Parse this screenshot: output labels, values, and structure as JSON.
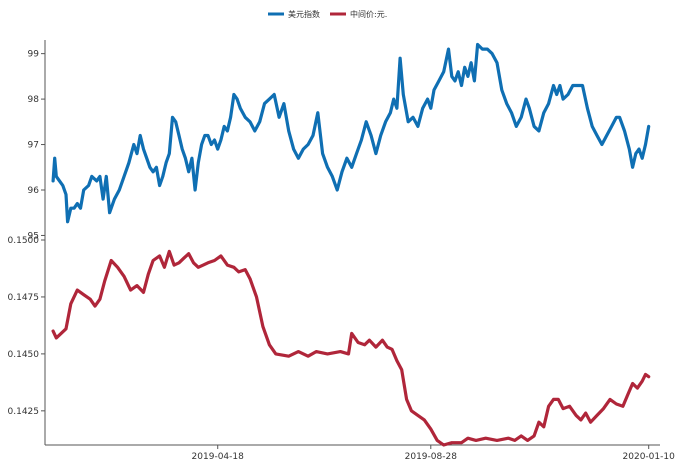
{
  "chart_data": {
    "type": "line",
    "grid": false,
    "legend": {
      "placement": "top-center",
      "entries": [
        {
          "name": "美元指数",
          "color": "#0f6fb3"
        },
        {
          "name": "中间价:元.",
          "color": "#b0263a"
        }
      ]
    },
    "x_axis": {
      "type": "date",
      "range": [
        "2019-01-01",
        "2020-01-17"
      ],
      "ticks": [
        "2019-04-18",
        "2019-08-28",
        "2020-01-10"
      ]
    },
    "panels": [
      {
        "series_name": "美元指数",
        "ylim": [
          94.9,
          99.3
        ],
        "yticks": [
          "95",
          "96",
          "97",
          "98",
          "99"
        ],
        "points": [
          [
            "2019-01-06",
            96.2
          ],
          [
            "2019-01-07",
            96.7
          ],
          [
            "2019-01-08",
            96.3
          ],
          [
            "2019-01-10",
            96.2
          ],
          [
            "2019-01-12",
            96.1
          ],
          [
            "2019-01-14",
            95.9
          ],
          [
            "2019-01-15",
            95.3
          ],
          [
            "2019-01-17",
            95.6
          ],
          [
            "2019-01-19",
            95.6
          ],
          [
            "2019-01-21",
            95.7
          ],
          [
            "2019-01-23",
            95.6
          ],
          [
            "2019-01-25",
            96.0
          ],
          [
            "2019-01-28",
            96.1
          ],
          [
            "2019-01-30",
            96.3
          ],
          [
            "2019-02-02",
            96.2
          ],
          [
            "2019-02-04",
            96.3
          ],
          [
            "2019-02-06",
            95.8
          ],
          [
            "2019-02-08",
            96.3
          ],
          [
            "2019-02-10",
            95.5
          ],
          [
            "2019-02-13",
            95.8
          ],
          [
            "2019-02-16",
            96.0
          ],
          [
            "2019-02-19",
            96.3
          ],
          [
            "2019-02-22",
            96.6
          ],
          [
            "2019-02-25",
            97.0
          ],
          [
            "2019-02-27",
            96.8
          ],
          [
            "2019-03-01",
            97.2
          ],
          [
            "2019-03-03",
            96.9
          ],
          [
            "2019-03-05",
            96.7
          ],
          [
            "2019-03-07",
            96.5
          ],
          [
            "2019-03-09",
            96.4
          ],
          [
            "2019-03-11",
            96.5
          ],
          [
            "2019-03-13",
            96.1
          ],
          [
            "2019-03-15",
            96.3
          ],
          [
            "2019-03-17",
            96.6
          ],
          [
            "2019-03-19",
            96.8
          ],
          [
            "2019-03-21",
            97.6
          ],
          [
            "2019-03-23",
            97.5
          ],
          [
            "2019-03-25",
            97.2
          ],
          [
            "2019-03-27",
            96.9
          ],
          [
            "2019-03-29",
            96.7
          ],
          [
            "2019-03-31",
            96.4
          ],
          [
            "2019-04-02",
            96.7
          ],
          [
            "2019-04-04",
            96.0
          ],
          [
            "2019-04-06",
            96.6
          ],
          [
            "2019-04-08",
            97.0
          ],
          [
            "2019-04-10",
            97.2
          ],
          [
            "2019-04-12",
            97.2
          ],
          [
            "2019-04-14",
            97.0
          ],
          [
            "2019-04-16",
            97.1
          ],
          [
            "2019-04-18",
            96.9
          ],
          [
            "2019-04-20",
            97.1
          ],
          [
            "2019-04-22",
            97.4
          ],
          [
            "2019-04-24",
            97.3
          ],
          [
            "2019-04-26",
            97.6
          ],
          [
            "2019-04-28",
            98.1
          ],
          [
            "2019-04-30",
            98.0
          ],
          [
            "2019-05-02",
            97.8
          ],
          [
            "2019-05-05",
            97.6
          ],
          [
            "2019-05-08",
            97.5
          ],
          [
            "2019-05-11",
            97.3
          ],
          [
            "2019-05-14",
            97.5
          ],
          [
            "2019-05-17",
            97.9
          ],
          [
            "2019-05-20",
            98.0
          ],
          [
            "2019-05-23",
            98.1
          ],
          [
            "2019-05-26",
            97.6
          ],
          [
            "2019-05-29",
            97.9
          ],
          [
            "2019-06-01",
            97.3
          ],
          [
            "2019-06-04",
            96.9
          ],
          [
            "2019-06-07",
            96.7
          ],
          [
            "2019-06-10",
            96.9
          ],
          [
            "2019-06-13",
            97.0
          ],
          [
            "2019-06-16",
            97.2
          ],
          [
            "2019-06-19",
            97.7
          ],
          [
            "2019-06-22",
            96.8
          ],
          [
            "2019-06-25",
            96.5
          ],
          [
            "2019-06-28",
            96.3
          ],
          [
            "2019-07-01",
            96.0
          ],
          [
            "2019-07-04",
            96.4
          ],
          [
            "2019-07-07",
            96.7
          ],
          [
            "2019-07-10",
            96.5
          ],
          [
            "2019-07-13",
            96.8
          ],
          [
            "2019-07-16",
            97.1
          ],
          [
            "2019-07-19",
            97.5
          ],
          [
            "2019-07-22",
            97.2
          ],
          [
            "2019-07-25",
            96.8
          ],
          [
            "2019-07-28",
            97.2
          ],
          [
            "2019-07-31",
            97.5
          ],
          [
            "2019-08-03",
            97.7
          ],
          [
            "2019-08-05",
            98.0
          ],
          [
            "2019-08-07",
            97.8
          ],
          [
            "2019-08-09",
            98.9
          ],
          [
            "2019-08-11",
            98.1
          ],
          [
            "2019-08-14",
            97.5
          ],
          [
            "2019-08-17",
            97.6
          ],
          [
            "2019-08-20",
            97.4
          ],
          [
            "2019-08-23",
            97.8
          ],
          [
            "2019-08-26",
            98.0
          ],
          [
            "2019-08-28",
            97.8
          ],
          [
            "2019-08-30",
            98.2
          ],
          [
            "2019-09-02",
            98.4
          ],
          [
            "2019-09-05",
            98.6
          ],
          [
            "2019-09-08",
            99.1
          ],
          [
            "2019-09-10",
            98.5
          ],
          [
            "2019-09-12",
            98.4
          ],
          [
            "2019-09-14",
            98.6
          ],
          [
            "2019-09-16",
            98.3
          ],
          [
            "2019-09-18",
            98.7
          ],
          [
            "2019-09-20",
            98.5
          ],
          [
            "2019-09-22",
            98.8
          ],
          [
            "2019-09-24",
            98.4
          ],
          [
            "2019-09-26",
            99.2
          ],
          [
            "2019-09-29",
            99.1
          ],
          [
            "2019-10-02",
            99.1
          ],
          [
            "2019-10-05",
            99.0
          ],
          [
            "2019-10-08",
            98.8
          ],
          [
            "2019-10-11",
            98.2
          ],
          [
            "2019-10-14",
            97.9
          ],
          [
            "2019-10-17",
            97.7
          ],
          [
            "2019-10-20",
            97.4
          ],
          [
            "2019-10-23",
            97.6
          ],
          [
            "2019-10-26",
            98.0
          ],
          [
            "2019-10-28",
            97.8
          ],
          [
            "2019-10-31",
            97.4
          ],
          [
            "2019-11-03",
            97.3
          ],
          [
            "2019-11-06",
            97.7
          ],
          [
            "2019-11-09",
            97.9
          ],
          [
            "2019-11-12",
            98.3
          ],
          [
            "2019-11-14",
            98.1
          ],
          [
            "2019-11-16",
            98.3
          ],
          [
            "2019-11-18",
            98.0
          ],
          [
            "2019-11-21",
            98.1
          ],
          [
            "2019-11-24",
            98.3
          ],
          [
            "2019-11-27",
            98.3
          ],
          [
            "2019-11-30",
            98.3
          ],
          [
            "2019-12-03",
            97.8
          ],
          [
            "2019-12-06",
            97.4
          ],
          [
            "2019-12-09",
            97.2
          ],
          [
            "2019-12-12",
            97.0
          ],
          [
            "2019-12-15",
            97.2
          ],
          [
            "2019-12-18",
            97.4
          ],
          [
            "2019-12-21",
            97.6
          ],
          [
            "2019-12-23",
            97.6
          ],
          [
            "2019-12-26",
            97.3
          ],
          [
            "2019-12-29",
            96.9
          ],
          [
            "2019-12-31",
            96.5
          ],
          [
            "2020-01-02",
            96.8
          ],
          [
            "2020-01-04",
            96.9
          ],
          [
            "2020-01-06",
            96.7
          ],
          [
            "2020-01-08",
            97.0
          ],
          [
            "2020-01-10",
            97.4
          ]
        ]
      },
      {
        "series_name": "中间价:元.",
        "ylim": [
          0.141,
          0.15
        ],
        "yticks": [
          "0.1425",
          "0.1450",
          "0.1475",
          "0.1500"
        ],
        "points": [
          [
            "2019-01-06",
            0.146
          ],
          [
            "2019-01-08",
            0.1457
          ],
          [
            "2019-01-11",
            0.1459
          ],
          [
            "2019-01-14",
            0.1461
          ],
          [
            "2019-01-17",
            0.1472
          ],
          [
            "2019-01-21",
            0.1478
          ],
          [
            "2019-01-25",
            0.1476
          ],
          [
            "2019-01-29",
            0.1474
          ],
          [
            "2019-02-01",
            0.1471
          ],
          [
            "2019-02-04",
            0.1474
          ],
          [
            "2019-02-07",
            0.1482
          ],
          [
            "2019-02-11",
            0.1491
          ],
          [
            "2019-02-15",
            0.1488
          ],
          [
            "2019-02-19",
            0.1484
          ],
          [
            "2019-02-23",
            0.1478
          ],
          [
            "2019-02-27",
            0.148
          ],
          [
            "2019-03-03",
            0.1477
          ],
          [
            "2019-03-06",
            0.1485
          ],
          [
            "2019-03-09",
            0.1491
          ],
          [
            "2019-03-13",
            0.1493
          ],
          [
            "2019-03-16",
            0.1488
          ],
          [
            "2019-03-19",
            0.1495
          ],
          [
            "2019-03-22",
            0.1489
          ],
          [
            "2019-03-25",
            0.149
          ],
          [
            "2019-03-28",
            0.1492
          ],
          [
            "2019-03-31",
            0.1494
          ],
          [
            "2019-04-03",
            0.149
          ],
          [
            "2019-04-06",
            0.1488
          ],
          [
            "2019-04-09",
            0.1489
          ],
          [
            "2019-04-12",
            0.149
          ],
          [
            "2019-04-16",
            0.1491
          ],
          [
            "2019-04-20",
            0.1493
          ],
          [
            "2019-04-24",
            0.1489
          ],
          [
            "2019-04-28",
            0.1488
          ],
          [
            "2019-05-01",
            0.1486
          ],
          [
            "2019-05-05",
            0.1487
          ],
          [
            "2019-05-08",
            0.1483
          ],
          [
            "2019-05-12",
            0.1475
          ],
          [
            "2019-05-16",
            0.1462
          ],
          [
            "2019-05-20",
            0.1454
          ],
          [
            "2019-05-24",
            0.145
          ],
          [
            "2019-06-01",
            0.1449
          ],
          [
            "2019-06-07",
            0.1451
          ],
          [
            "2019-06-13",
            0.1449
          ],
          [
            "2019-06-18",
            0.1451
          ],
          [
            "2019-06-25",
            0.145
          ],
          [
            "2019-07-03",
            0.1451
          ],
          [
            "2019-07-08",
            0.145
          ],
          [
            "2019-07-10",
            0.1459
          ],
          [
            "2019-07-14",
            0.1455
          ],
          [
            "2019-07-18",
            0.1454
          ],
          [
            "2019-07-21",
            0.1456
          ],
          [
            "2019-07-25",
            0.1453
          ],
          [
            "2019-07-29",
            0.1456
          ],
          [
            "2019-08-01",
            0.1453
          ],
          [
            "2019-08-04",
            0.1452
          ],
          [
            "2019-08-07",
            0.1447
          ],
          [
            "2019-08-10",
            0.1443
          ],
          [
            "2019-08-13",
            0.143
          ],
          [
            "2019-08-16",
            0.1425
          ],
          [
            "2019-08-20",
            0.1423
          ],
          [
            "2019-08-24",
            0.1421
          ],
          [
            "2019-08-28",
            0.1417
          ],
          [
            "2019-09-01",
            0.1412
          ],
          [
            "2019-09-05",
            0.141
          ],
          [
            "2019-09-10",
            0.1411
          ],
          [
            "2019-09-16",
            0.1411
          ],
          [
            "2019-09-20",
            0.1413
          ],
          [
            "2019-09-25",
            0.1412
          ],
          [
            "2019-10-01",
            0.1413
          ],
          [
            "2019-10-08",
            0.1412
          ],
          [
            "2019-10-15",
            0.1413
          ],
          [
            "2019-10-19",
            0.1412
          ],
          [
            "2019-10-23",
            0.1414
          ],
          [
            "2019-10-27",
            0.1412
          ],
          [
            "2019-10-31",
            0.1414
          ],
          [
            "2019-11-03",
            0.142
          ],
          [
            "2019-11-06",
            0.1418
          ],
          [
            "2019-11-09",
            0.1427
          ],
          [
            "2019-11-12",
            0.143
          ],
          [
            "2019-11-15",
            0.143
          ],
          [
            "2019-11-18",
            0.1426
          ],
          [
            "2019-11-22",
            0.1427
          ],
          [
            "2019-11-26",
            0.1423
          ],
          [
            "2019-11-29",
            0.1421
          ],
          [
            "2019-12-02",
            0.1424
          ],
          [
            "2019-12-05",
            0.142
          ],
          [
            "2019-12-09",
            0.1423
          ],
          [
            "2019-12-13",
            0.1426
          ],
          [
            "2019-12-17",
            0.143
          ],
          [
            "2019-12-21",
            0.1428
          ],
          [
            "2019-12-25",
            0.1427
          ],
          [
            "2019-12-28",
            0.1432
          ],
          [
            "2019-12-31",
            0.1437
          ],
          [
            "2020-01-03",
            0.1435
          ],
          [
            "2020-01-06",
            0.1438
          ],
          [
            "2020-01-08",
            0.1441
          ],
          [
            "2020-01-10",
            0.144
          ]
        ]
      }
    ]
  }
}
